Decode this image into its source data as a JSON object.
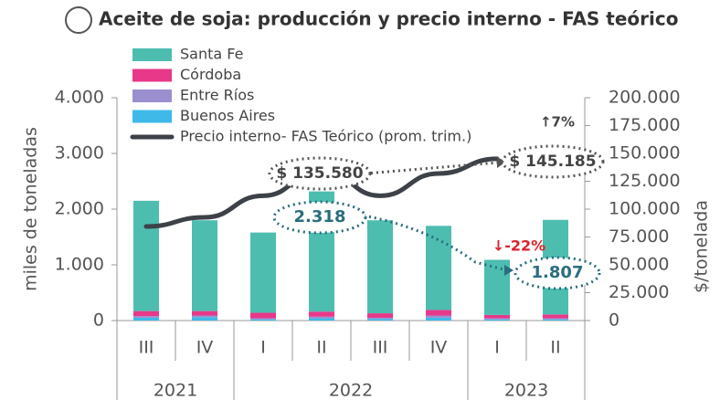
{
  "chart_data": {
    "type": "bar",
    "title": "Aceite de soja: producción y precio interno - FAS teórico",
    "ylabel": "miles de toneladas",
    "y2label": "$/tonelada",
    "categories": [
      "III",
      "IV",
      "I",
      "II",
      "III",
      "IV",
      "I",
      "II"
    ],
    "years": [
      "2021",
      "2022",
      "2023"
    ],
    "year_spans": [
      2,
      4,
      2
    ],
    "series": [
      {
        "name": "Buenos Aires",
        "color": "#3fb9e8",
        "values": [
          50,
          60,
          20,
          40,
          30,
          50,
          20,
          20
        ]
      },
      {
        "name": "Entre Ríos",
        "color": "#9b8fd0",
        "values": [
          30,
          30,
          20,
          30,
          20,
          40,
          20,
          20
        ]
      },
      {
        "name": "Córdoba",
        "color": "#e8388a",
        "values": [
          90,
          80,
          100,
          90,
          80,
          100,
          60,
          70
        ]
      },
      {
        "name": "Santa Fe",
        "color": "#4dbdb0",
        "values": [
          1980,
          1630,
          1440,
          2158,
          1670,
          1510,
          990,
          1697
        ]
      },
      {
        "name": "Precio interno- FAS Teórico (prom. trim.)",
        "type": "line",
        "axis": "y2",
        "color": "#3d4148",
        "values": [
          84400,
          92600,
          112000,
          135580,
          112000,
          132000,
          145185,
          null
        ],
        "value_labels": [
          null,
          null,
          null,
          "$ 135.580",
          null,
          null,
          "$ 145.185",
          null
        ]
      }
    ],
    "annotations": [
      "2.318",
      "1.807",
      "↑7%",
      "↓-22%"
    ],
    "ylim": [
      0,
      4000
    ],
    "yticks": [
      0,
      {
        "value": 1000,
        "label": "1.000"
      },
      {
        "value": 2000,
        "label": "2.000"
      },
      {
        "value": 3000,
        "label": "3.000"
      },
      {
        "value": 4000,
        "label": "4.000"
      }
    ],
    "y2lim": [
      0,
      200000
    ],
    "y2ticks": [
      0,
      {
        "value": 25000,
        "label": "25.000"
      },
      {
        "value": 50000,
        "label": "50.000"
      },
      {
        "value": 75000,
        "label": "75.000"
      },
      {
        "value": 100000,
        "label": "100.000"
      },
      {
        "value": 125000,
        "label": "125.000"
      },
      {
        "value": 150000,
        "label": "150.000"
      },
      {
        "value": 175000,
        "label": "175.000"
      },
      {
        "value": 200000,
        "label": "200.000"
      }
    ]
  }
}
